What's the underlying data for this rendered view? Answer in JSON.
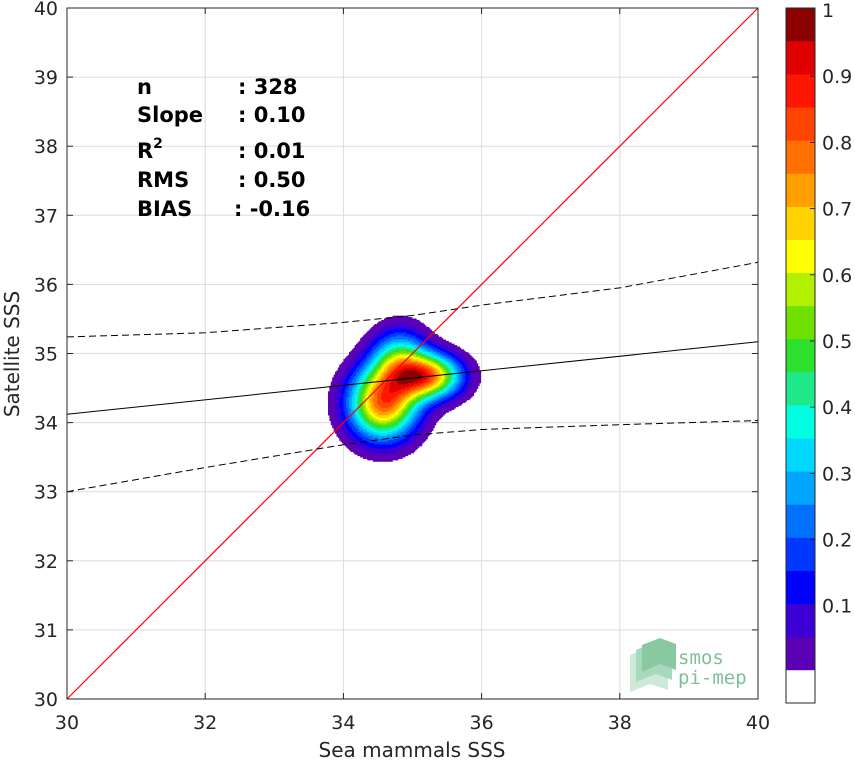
{
  "chart_data": {
    "type": "contour",
    "xlabel": "Sea mammals SSS",
    "ylabel": "Satellite SSS",
    "xlim": [
      30,
      40
    ],
    "ylim": [
      30,
      40
    ],
    "x_ticks": [
      "30",
      "32",
      "34",
      "36",
      "38",
      "40"
    ],
    "y_ticks": [
      "30",
      "31",
      "32",
      "33",
      "34",
      "35",
      "36",
      "37",
      "38",
      "39",
      "40"
    ],
    "grid": true,
    "stats": [
      {
        "label": "n",
        "value": ": 328"
      },
      {
        "label": "Slope",
        "value": ": 0.10"
      },
      {
        "label": "R2",
        "value": ": 0.01"
      },
      {
        "label": "RMS",
        "value": ": 0.50"
      },
      {
        "label": "BIAS",
        "value": ": -0.16"
      }
    ],
    "identity_line": {
      "color": "#ff0000",
      "points": [
        [
          30,
          30
        ],
        [
          40,
          40
        ]
      ]
    },
    "regression_line": {
      "color": "#000000",
      "points": [
        [
          30,
          34.12
        ],
        [
          40,
          35.17
        ]
      ]
    },
    "confidence_upper": {
      "style": "dashed",
      "x": [
        30,
        32,
        34,
        35,
        36,
        38,
        40
      ],
      "y": [
        35.24,
        35.3,
        35.45,
        35.55,
        35.7,
        35.95,
        36.32
      ]
    },
    "confidence_lower": {
      "style": "dashed",
      "x": [
        30,
        32,
        34,
        35,
        36,
        38,
        40
      ],
      "y": [
        33.0,
        33.35,
        33.68,
        33.82,
        33.9,
        33.97,
        34.03
      ]
    },
    "density_peaks": [
      {
        "x": 34.57,
        "y": 34.28,
        "sx": 0.34,
        "sy": 0.36,
        "w": 1.0
      },
      {
        "x": 35.25,
        "y": 34.67,
        "sx": 0.32,
        "sy": 0.22,
        "w": 0.9
      },
      {
        "x": 34.82,
        "y": 34.88,
        "sx": 0.28,
        "sy": 0.32,
        "w": 0.55
      }
    ],
    "colorbar": {
      "range": [
        0,
        1
      ],
      "ticks": [
        "0.1",
        "0.2",
        "0.3",
        "0.4",
        "0.5",
        "0.6",
        "0.7",
        "0.8",
        "0.9",
        "1"
      ],
      "colors": [
        "#ffffff",
        "#5b00b5",
        "#3c00d6",
        "#0000ff",
        "#0038ff",
        "#0070ff",
        "#00a6ff",
        "#00d8ff",
        "#00ffe0",
        "#1ee88a",
        "#2ee02e",
        "#6fe000",
        "#b0f000",
        "#ffff00",
        "#ffd200",
        "#ffa000",
        "#ff7000",
        "#ff4400",
        "#ff1600",
        "#e00000",
        "#8c0000"
      ]
    },
    "logo": {
      "line1": "smos",
      "line2": "pi-mep"
    }
  }
}
